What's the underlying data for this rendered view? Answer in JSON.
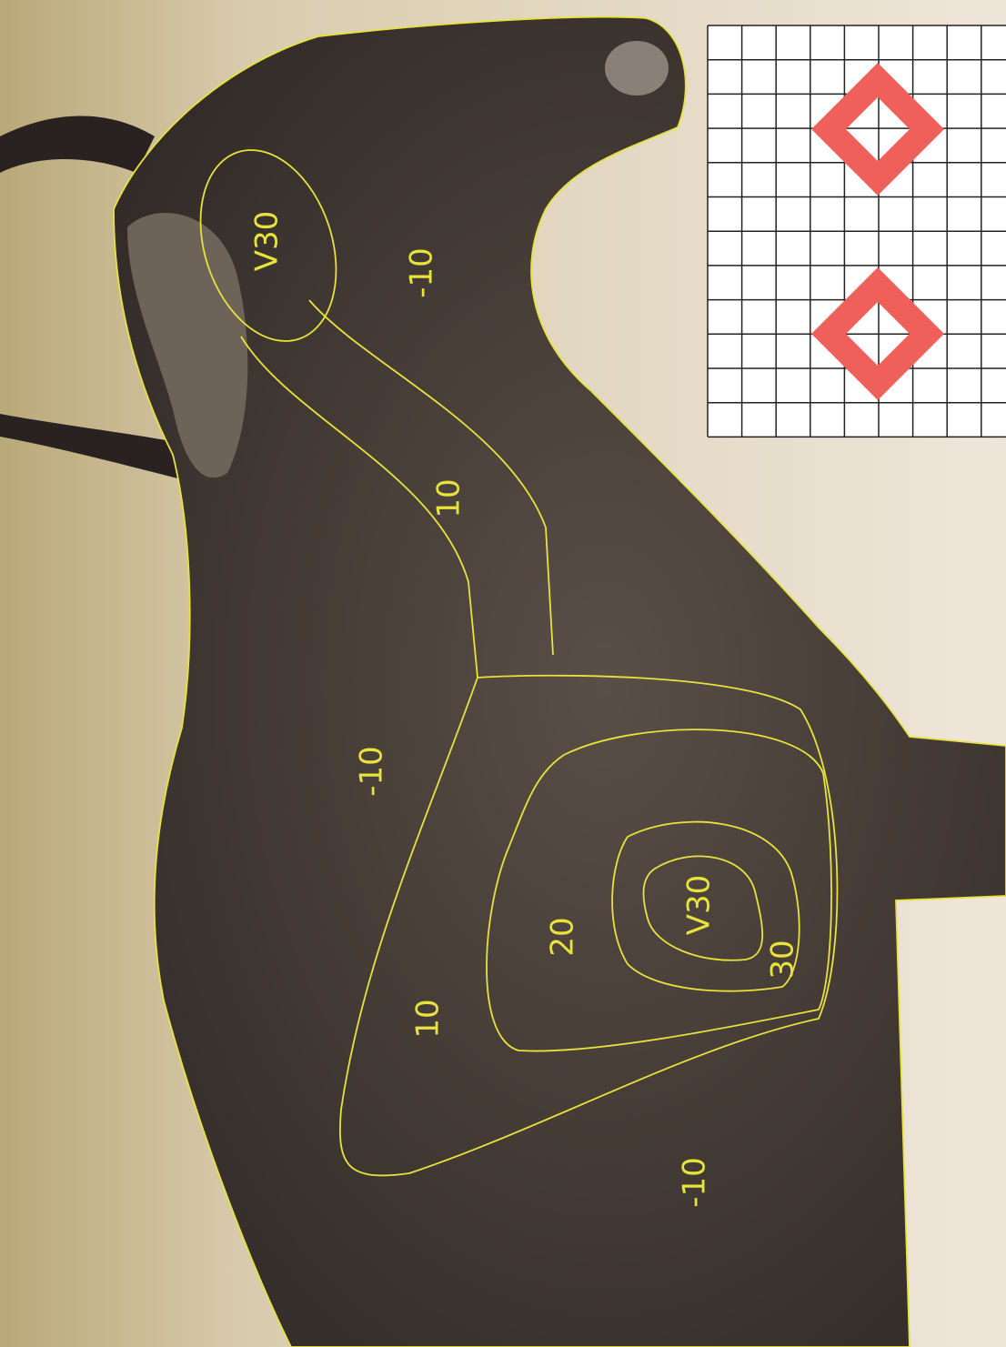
{
  "labels": [
    "V30",
    "-10",
    "10",
    "-10",
    "20",
    "V30",
    "30",
    "10",
    "-10"
  ]
}
